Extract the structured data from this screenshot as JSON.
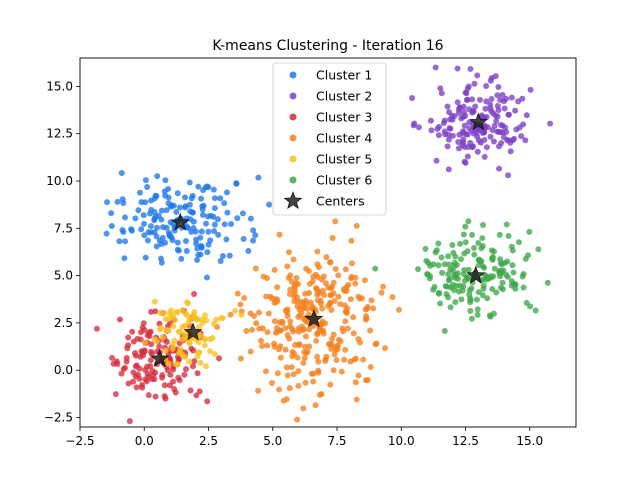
{
  "chart_data": {
    "type": "scatter",
    "title": "K-means Clustering - Iteration 16",
    "xlim": [
      -2.5,
      16.8
    ],
    "ylim": [
      -3.0,
      16.5
    ],
    "x_ticks": [
      -2.5,
      0.0,
      2.5,
      5.0,
      7.5,
      10.0,
      12.5,
      15.0
    ],
    "y_ticks": [
      -2.5,
      0.0,
      2.5,
      5.0,
      7.5,
      10.0,
      12.5,
      15.0
    ],
    "x_tick_labels": [
      "−2.5",
      "0.0",
      "2.5",
      "5.0",
      "7.5",
      "10.0",
      "12.5",
      "15.0"
    ],
    "y_tick_labels": [
      "−2.5",
      "0.0",
      "2.5",
      "5.0",
      "7.5",
      "10.0",
      "12.5",
      "15.0"
    ],
    "grid": false,
    "legend_position": "top-center",
    "clusters": [
      {
        "name": "Cluster 1",
        "color": "#1f77e8",
        "center": [
          1.4,
          7.8
        ],
        "spread": [
          1.35,
          1.15
        ],
        "count": 170
      },
      {
        "name": "Cluster 2",
        "color": "#7b3fc4",
        "center": [
          13.0,
          13.1
        ],
        "spread": [
          1.05,
          1.0
        ],
        "count": 170
      },
      {
        "name": "Cluster 3",
        "color": "#d62c3f",
        "center": [
          0.6,
          0.6
        ],
        "spread": [
          0.9,
          1.1
        ],
        "count": 150
      },
      {
        "name": "Cluster 4",
        "color": "#f5801e",
        "center": [
          6.6,
          2.7
        ],
        "spread": [
          1.4,
          1.9
        ],
        "count": 300
      },
      {
        "name": "Cluster 5",
        "color": "#f6c21c",
        "center": [
          1.9,
          2.0
        ],
        "spread": [
          0.75,
          0.95
        ],
        "count": 90
      },
      {
        "name": "Cluster 6",
        "color": "#3fa64a",
        "center": [
          12.9,
          5.0
        ],
        "spread": [
          1.15,
          1.05
        ],
        "count": 170
      }
    ],
    "centers": {
      "name": "Centers",
      "color": "#222222",
      "points": [
        [
          1.4,
          7.8
        ],
        [
          13.0,
          13.1
        ],
        [
          0.6,
          0.6
        ],
        [
          6.6,
          2.7
        ],
        [
          1.9,
          2.0
        ],
        [
          12.9,
          5.0
        ]
      ]
    }
  }
}
